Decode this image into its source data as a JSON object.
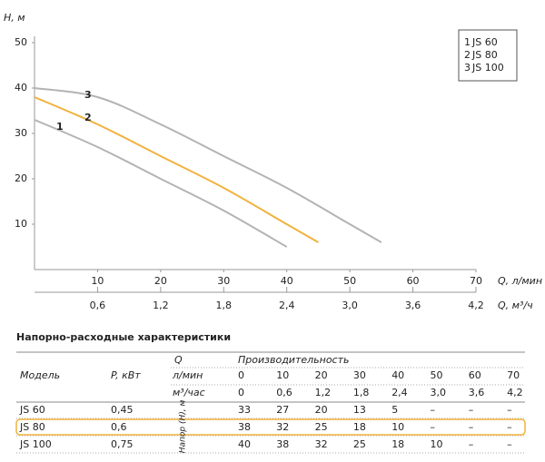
{
  "chart_data": {
    "type": "line",
    "ylabel": "H, м",
    "xlabel": "Q, л/мин",
    "x2label": "Q, м³/ч",
    "ylim": [
      0,
      50
    ],
    "yticks": [
      10,
      20,
      30,
      40,
      50
    ],
    "xlim": [
      0,
      70
    ],
    "xticks": [
      10,
      20,
      30,
      40,
      50,
      60,
      70
    ],
    "x2lim": [
      0,
      4.2
    ],
    "x2ticks": [
      {
        "value": 0.6,
        "label": "0,6"
      },
      {
        "value": 1.2,
        "label": "1,2"
      },
      {
        "value": 1.8,
        "label": "1,8"
      },
      {
        "value": 2.4,
        "label": "2,4"
      },
      {
        "value": 3.0,
        "label": "3,0"
      },
      {
        "value": 3.6,
        "label": "3,6"
      },
      {
        "value": 4.2,
        "label": "4,2"
      }
    ],
    "grid": false,
    "legend": "upper right",
    "series": [
      {
        "name": "JS 60",
        "label": "1",
        "color": "#b3b3b3",
        "x": [
          0,
          10,
          20,
          30,
          40
        ],
        "values": [
          33,
          27,
          20,
          13,
          5
        ]
      },
      {
        "name": "JS 80",
        "label": "2",
        "color": "#f0b23e",
        "x": [
          0,
          10,
          20,
          30,
          40,
          45
        ],
        "values": [
          38,
          32,
          25,
          18,
          10,
          6
        ]
      },
      {
        "name": "JS 100",
        "label": "3",
        "color": "#b3b3b3",
        "x": [
          0,
          10,
          20,
          30,
          40,
          50,
          55
        ],
        "values": [
          40,
          38,
          32,
          25,
          18,
          10,
          6
        ]
      }
    ]
  },
  "table": {
    "title": "Напорно-расходные характеристики",
    "q": "Q",
    "performance": "Производительность",
    "model": "Модель",
    "power": "P, кВт",
    "unit_lmin": "л/мин",
    "unit_m3h": "м³/час",
    "head": "Напор (H), м",
    "flow_lmin": [
      "0",
      "10",
      "20",
      "30",
      "40",
      "50",
      "60",
      "70"
    ],
    "flow_m3h": [
      "0",
      "0,6",
      "1,2",
      "1,8",
      "2,4",
      "3,0",
      "3,6",
      "4,2"
    ],
    "rows": [
      {
        "model": "JS 60",
        "power": "0,45",
        "values": [
          "33",
          "27",
          "20",
          "13",
          "5",
          "–",
          "–",
          "–"
        ]
      },
      {
        "model": "JS 80",
        "power": "0,6",
        "values": [
          "38",
          "32",
          "25",
          "18",
          "10",
          "–",
          "–",
          "–"
        ]
      },
      {
        "model": "JS 100",
        "power": "0,75",
        "values": [
          "40",
          "38",
          "32",
          "25",
          "18",
          "10",
          "–",
          "–"
        ]
      }
    ]
  }
}
